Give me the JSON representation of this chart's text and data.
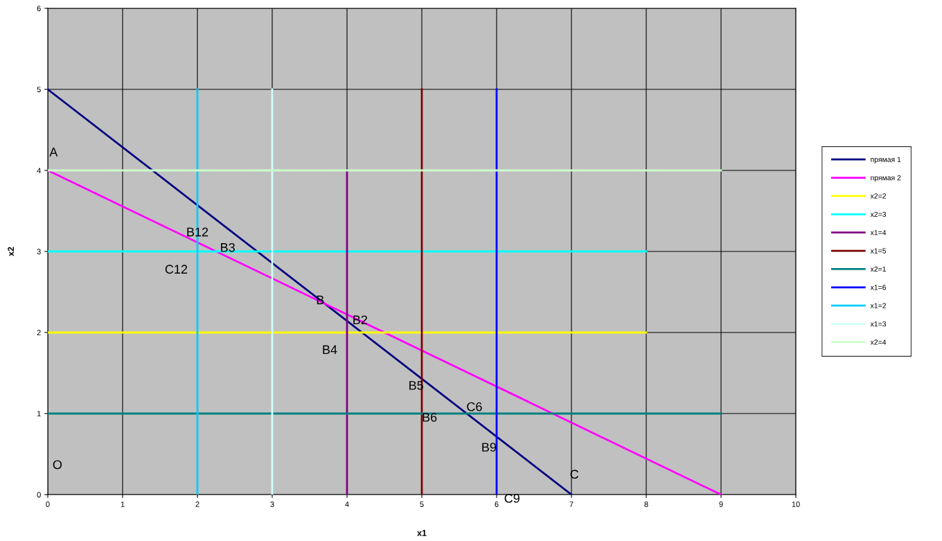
{
  "chart_data": {
    "type": "line",
    "xlabel": "x1",
    "ylabel": "x2",
    "xlim": [
      0,
      10
    ],
    "ylim": [
      0,
      6
    ],
    "xticks": [
      0,
      1,
      2,
      3,
      4,
      5,
      6,
      7,
      8,
      9,
      10
    ],
    "yticks": [
      0,
      1,
      2,
      3,
      4,
      5,
      6
    ],
    "grid": true,
    "legend": "right",
    "marker": "none",
    "line_style": "solid",
    "series": [
      {
        "name": "прямая 1",
        "color": "#000080",
        "x": [
          0,
          7
        ],
        "values": [
          5,
          0
        ]
      },
      {
        "name": "прямая 2",
        "color": "#ff00ff",
        "x": [
          0,
          9
        ],
        "values": [
          4,
          0
        ]
      },
      {
        "name": "x2=2",
        "color": "#ffff00",
        "x": [
          0,
          8
        ],
        "values": [
          2,
          2
        ]
      },
      {
        "name": "x2=3",
        "color": "#00ffff",
        "x": [
          0,
          8
        ],
        "values": [
          3,
          3
        ]
      },
      {
        "name": "x1=4",
        "color": "#800080",
        "x": [
          4,
          4
        ],
        "values": [
          0,
          4
        ]
      },
      {
        "name": "x1=5",
        "color": "#800000",
        "x": [
          5,
          5
        ],
        "values": [
          0,
          5
        ]
      },
      {
        "name": "x2=1",
        "color": "#008080",
        "x": [
          0,
          9
        ],
        "values": [
          1,
          1
        ]
      },
      {
        "name": "x1=6",
        "color": "#0000ff",
        "x": [
          6,
          6
        ],
        "values": [
          0,
          5
        ]
      },
      {
        "name": "x1=2",
        "color": "#00ccff",
        "x": [
          2,
          2
        ],
        "values": [
          0,
          5
        ]
      },
      {
        "name": "x1=3",
        "color": "#ccffff",
        "x": [
          3,
          3
        ],
        "values": [
          0,
          5
        ]
      },
      {
        "name": "x2=4",
        "color": "#ccffcc",
        "x": [
          0,
          9
        ],
        "values": [
          4,
          4
        ]
      }
    ],
    "annotations": [
      {
        "text": "A",
        "x": 0,
        "y": 4
      },
      "O",
      {
        "text": "B12",
        "x": 2,
        "y": 3.571
      },
      {
        "text": "B3",
        "x": 2.25,
        "y": 3
      },
      {
        "text": "C12",
        "x": 2,
        "y": 3.111
      },
      {
        "text": "B",
        "x": 3.706,
        "y": 2.353
      },
      {
        "text": "B2",
        "x": 4.2,
        "y": 2
      },
      {
        "text": "B4",
        "x": 4,
        "y": 2.143
      },
      {
        "text": "B5",
        "x": 5,
        "y": 1.429
      },
      {
        "text": "B6",
        "x": 5,
        "y": 1
      },
      {
        "text": "C6",
        "x": 5.6,
        "y": 1
      },
      {
        "text": "B9",
        "x": 6,
        "y": 0.714
      },
      {
        "text": "C",
        "x": 7,
        "y": 0
      },
      {
        "text": "C9",
        "x": 6,
        "y": 0
      }
    ]
  }
}
